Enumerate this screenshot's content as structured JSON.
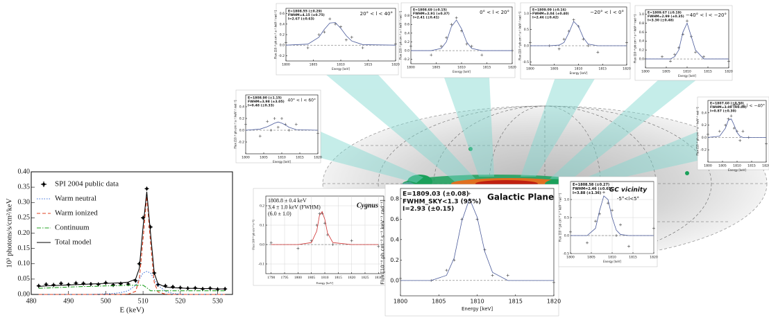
{
  "chart_data": [
    {
      "type": "line",
      "xlabel": "E (keV)",
      "ylabel": "10³ photons/s/cm²/keV",
      "x": [
        482,
        484,
        486,
        488,
        490,
        492,
        494,
        496,
        498,
        500,
        502,
        504,
        506,
        508,
        509,
        510,
        511,
        512,
        513,
        514,
        516,
        518,
        520,
        522,
        524,
        526,
        528,
        530,
        532
      ],
      "xlim": [
        480,
        534
      ],
      "xticks": [
        480,
        490,
        500,
        510,
        520,
        530
      ],
      "ylim": [
        0,
        0.4
      ],
      "yticks": [
        {
          "value": 0,
          "label": "0.00"
        },
        {
          "value": 0.05,
          "label": "0.05"
        },
        {
          "value": 0.1,
          "label": "0.10"
        },
        {
          "value": 0.15,
          "label": "0.15"
        },
        {
          "value": 0.2,
          "label": "0.20"
        },
        {
          "value": 0.25,
          "label": "0.25"
        },
        {
          "value": 0.3,
          "label": "0.30"
        },
        {
          "value": 0.35,
          "label": "0.35"
        },
        {
          "value": 0.4,
          "label": "0.40"
        }
      ],
      "legend": "upper left",
      "series": [
        {
          "name": "SPI 2004 public data",
          "color": "#000000",
          "style": "points",
          "values": [
            0.028,
            0.033,
            0.031,
            0.036,
            0.032,
            0.037,
            0.036,
            0.034,
            0.033,
            0.038,
            0.031,
            0.035,
            0.034,
            0.045,
            0.1,
            0.25,
            0.345,
            0.22,
            0.07,
            0.032,
            0.028,
            0.025,
            0.022,
            0.02,
            0.021,
            0.018,
            0.02,
            0.017,
            0.018
          ]
        },
        {
          "name": "Warm neutral",
          "color": "#3a6fd8",
          "style": "dotted",
          "values": [
            0,
            0,
            0,
            0,
            0,
            0,
            0,
            0,
            0.001,
            0.002,
            0.003,
            0.006,
            0.012,
            0.03,
            0.05,
            0.07,
            0.075,
            0.07,
            0.05,
            0.03,
            0.01,
            0.003,
            0.001,
            0,
            0,
            0,
            0,
            0,
            0
          ]
        },
        {
          "name": "Warm ionized",
          "color": "#e04020",
          "style": "dashed",
          "values": [
            0,
            0,
            0,
            0,
            0,
            0,
            0,
            0,
            0,
            0,
            0,
            0,
            0.001,
            0.01,
            0.05,
            0.18,
            0.32,
            0.17,
            0.04,
            0.008,
            0.001,
            0,
            0,
            0,
            0,
            0,
            0,
            0,
            0
          ]
        },
        {
          "name": "Continuum",
          "color": "#20a020",
          "style": "dashdot",
          "values": [
            0.02,
            0.021,
            0.022,
            0.023,
            0.024,
            0.025,
            0.026,
            0.026,
            0.027,
            0.028,
            0.028,
            0.029,
            0.03,
            0.03,
            0.03,
            0.03,
            0.022,
            0.012,
            0.012,
            0.012,
            0.012,
            0.012,
            0.012,
            0.012,
            0.012,
            0.012,
            0.012,
            0.012,
            0.012
          ]
        },
        {
          "name": "Total model",
          "color": "#000000",
          "style": "solid",
          "values": [
            0.026,
            0.028,
            0.029,
            0.03,
            0.031,
            0.032,
            0.033,
            0.034,
            0.035,
            0.036,
            0.037,
            0.038,
            0.04,
            0.05,
            0.085,
            0.22,
            0.335,
            0.2,
            0.07,
            0.035,
            0.024,
            0.022,
            0.021,
            0.02,
            0.02,
            0.019,
            0.019,
            0.018,
            0.018
          ]
        }
      ]
    },
    {
      "type": "line",
      "title": "20° < l < 40°",
      "annotations": [
        "E=1808.55 (±0.29)",
        "FWHM=4.15 (±0.75)",
        "I=2.67 (±0.63)"
      ],
      "xlabel": "Energy [keV]",
      "ylabel": "Flux [10⁻⁴ ph cm⁻² s⁻¹ keV⁻¹ rad⁻¹]",
      "x": [
        1800,
        1804,
        1806,
        1807,
        1808,
        1809,
        1810,
        1811,
        1812,
        1814,
        1820
      ],
      "xlim": [
        1800,
        1820
      ],
      "xticks": [
        1800,
        1805,
        1810,
        1815,
        1820
      ],
      "ylim": [
        -0.3,
        0.7
      ],
      "yticks": [
        -0.2,
        {
          "value": 0,
          "label": "0.0"
        },
        0.2,
        0.4,
        0.6
      ],
      "hline": 0,
      "series": [
        {
          "color": "#444444",
          "style": "points",
          "values": [
            0.05,
            -0.05,
            0.2,
            0.25,
            0.5,
            0.4,
            0.35,
            0.1,
            0.15,
            -0.05,
            0.02
          ]
        },
        {
          "color": "#4a5a9a",
          "style": "solid",
          "values": [
            0,
            0.02,
            0.15,
            0.3,
            0.42,
            0.43,
            0.32,
            0.18,
            0.08,
            0.01,
            0
          ]
        }
      ]
    },
    {
      "type": "line",
      "title": "0° < l < 20°",
      "annotations": [
        "E=1808.69 (±0.15)",
        "FWHM=2.91 (±0.37)",
        "I=2.41 (±0.41)"
      ],
      "xlabel": "Energy [keV]",
      "ylabel": "Flux [10⁻⁴ ph cm⁻² s⁻¹ keV⁻¹ rad⁻¹]",
      "x": [
        1800,
        1804,
        1806,
        1807,
        1808,
        1809,
        1810,
        1811,
        1812,
        1814,
        1820
      ],
      "xlim": [
        1800,
        1820
      ],
      "xticks": [
        1800,
        1805,
        1810,
        1815,
        1820
      ],
      "ylim": [
        -0.3,
        1.0
      ],
      "yticks": [
        -0.2,
        {
          "value": 0,
          "label": "0.0"
        },
        0.2,
        0.4,
        0.6,
        0.8
      ],
      "hline": 0,
      "series": [
        {
          "color": "#444444",
          "style": "points",
          "values": [
            0.1,
            -0.1,
            0.1,
            0.3,
            0.6,
            0.75,
            0.45,
            0.15,
            0.1,
            -0.1,
            0.0
          ]
        },
        {
          "color": "#4a5a9a",
          "style": "solid",
          "values": [
            0,
            0,
            0.05,
            0.2,
            0.55,
            0.7,
            0.5,
            0.2,
            0.05,
            0,
            0
          ]
        }
      ]
    },
    {
      "type": "line",
      "title": "−20° < l < 0°",
      "annotations": [
        "E=1809.09 (±0.16)",
        "FWHM=3.04 (±0.40)",
        "I=2.46 (±0.42)"
      ],
      "xlabel": "Energy [keV]",
      "ylabel": "Flux [10⁻⁴ ph cm⁻² s⁻¹ keV⁻¹ rad⁻¹]",
      "x": [
        1800,
        1804,
        1806,
        1807,
        1808,
        1809,
        1810,
        1811,
        1812,
        1814,
        1820
      ],
      "xlim": [
        1800,
        1820
      ],
      "xticks": [
        1800,
        1805,
        1810,
        1815,
        1820
      ],
      "ylim": [
        -0.6,
        1.2
      ],
      "yticks": [
        -0.5,
        {
          "value": 0,
          "label": "0.0"
        },
        0.5,
        {
          "value": 1,
          "label": "1.0"
        }
      ],
      "hline": 0,
      "series": [
        {
          "color": "#444444",
          "style": "points",
          "values": [
            0.1,
            0.0,
            -0.1,
            0.2,
            0.45,
            0.8,
            0.6,
            0.2,
            0.0,
            -0.2,
            0.1
          ]
        },
        {
          "color": "#4a5a9a",
          "style": "solid",
          "values": [
            0,
            0,
            0.02,
            0.1,
            0.4,
            0.75,
            0.6,
            0.25,
            0.05,
            0,
            0
          ]
        }
      ]
    },
    {
      "type": "line",
      "title": "−40° < l < −20°",
      "annotations": [
        "E=1809.67 (±0.19)",
        "FWHM=2.99 (±0.35)",
        "I=3.30 (±0.48)"
      ],
      "xlabel": "Energy [keV]",
      "ylabel": "Flux [10⁻⁴ ph cm⁻² s⁻¹ keV⁻¹ rad⁻¹]",
      "x": [
        1800,
        1804,
        1806,
        1807,
        1808,
        1809,
        1810,
        1811,
        1812,
        1814,
        1820
      ],
      "xlim": [
        1800,
        1820
      ],
      "xticks": [
        1800,
        1805,
        1810,
        1815,
        1820
      ],
      "ylim": [
        -0.2,
        1.1
      ],
      "yticks": [
        {
          "value": 0,
          "label": "0.0"
        },
        0.2,
        0.4,
        0.6,
        0.8,
        {
          "value": 1,
          "label": "1.0"
        }
      ],
      "hline": 0,
      "series": [
        {
          "color": "#444444",
          "style": "points",
          "values": [
            0.0,
            0.05,
            -0.05,
            0.1,
            0.25,
            0.55,
            0.85,
            0.5,
            0.15,
            0.05,
            -0.05
          ]
        },
        {
          "color": "#4a5a9a",
          "style": "solid",
          "values": [
            0,
            0,
            0,
            0.05,
            0.2,
            0.6,
            0.8,
            0.5,
            0.2,
            0,
            0
          ]
        }
      ]
    },
    {
      "type": "line",
      "title": "40° < l < 60°",
      "annotations": [
        "E=1808.90 (±1.15)",
        "FWHM=3.98 (±3.05)",
        "I=0.48 (±0.33)"
      ],
      "xlabel": "Energy [keV]",
      "ylabel": "Flux [10⁻⁴ ph cm⁻² s⁻¹ keV⁻¹ rad⁻¹]",
      "x": [
        1800,
        1804,
        1806,
        1807,
        1808,
        1809,
        1810,
        1811,
        1812,
        1814,
        1820
      ],
      "xlim": [
        1800,
        1820
      ],
      "xticks": [
        1800,
        1805,
        1810,
        1815,
        1820
      ],
      "ylim": [
        -0.4,
        0.6
      ],
      "yticks": [
        -0.2,
        {
          "value": 0,
          "label": "0.0"
        },
        0.2,
        0.4
      ],
      "hline": 0,
      "series": [
        {
          "color": "#444444",
          "style": "points",
          "values": [
            0.1,
            -0.1,
            0.15,
            0,
            0.2,
            0.05,
            0.2,
            0.1,
            0,
            0.1,
            -0.05
          ]
        },
        {
          "color": "#4a5a9a",
          "style": "solid",
          "values": [
            0,
            0.02,
            0.06,
            0.09,
            0.12,
            0.14,
            0.12,
            0.09,
            0.05,
            0.01,
            0
          ]
        }
      ]
    },
    {
      "type": "line",
      "title": "−60° < l < −40°",
      "annotations": [
        "E=1807.60 (±0.50)",
        "FWHM=3.00 (±0.00)",
        "I=0.87 (±0.30)"
      ],
      "xlabel": "Energy [keV]",
      "ylabel": "Flux [10⁻⁴ ph cm⁻² s⁻¹ keV⁻¹ rad⁻¹]",
      "x": [
        1800,
        1804,
        1806,
        1807,
        1808,
        1809,
        1810,
        1811,
        1812,
        1814,
        1820
      ],
      "xlim": [
        1800,
        1820
      ],
      "xticks": [
        1800,
        1805,
        1810,
        1815,
        1820
      ],
      "ylim": [
        -0.4,
        0.6
      ],
      "yticks": [
        -0.2,
        {
          "value": 0,
          "label": "0.0"
        },
        0.2,
        0.4
      ],
      "hline": 0,
      "series": [
        {
          "color": "#444444",
          "style": "points",
          "values": [
            0.05,
            0.1,
            0.2,
            0.3,
            0.35,
            0.15,
            0.1,
            -0.05,
            0.1,
            0,
            -0.1
          ]
        },
        {
          "color": "#4a5a9a",
          "style": "solid",
          "values": [
            0,
            0.02,
            0.15,
            0.28,
            0.3,
            0.2,
            0.08,
            0.02,
            0,
            0,
            0
          ]
        }
      ]
    },
    {
      "type": "line",
      "title": "Cygnus",
      "annotations": [
        "1808.8 ± 0.4 keV",
        "3.4 ± 1.0 keV (FWHM)",
        "(6.0 ± 1.0)"
      ],
      "xlabel": "Energy [keV]",
      "ylabel": "Flux [10⁻³ ph cm⁻² s⁻¹]",
      "x": [
        1790,
        1800,
        1805,
        1807,
        1808,
        1809,
        1810,
        1811,
        1813,
        1820,
        1830
      ],
      "xlim": [
        1788,
        1832
      ],
      "xticks": [
        1790,
        1795,
        1800,
        1805,
        1810,
        1815,
        1820,
        1825,
        1830
      ],
      "ylim": [
        -0.15,
        0.25
      ],
      "yticks": [
        -0.1,
        {
          "value": 0,
          "label": "0.0"
        },
        0.1,
        0.2
      ],
      "grid": true,
      "hline": 0,
      "series": [
        {
          "color": "#444444",
          "style": "points",
          "values": [
            0.01,
            -0.02,
            0.02,
            0.1,
            0.16,
            0.16,
            0.11,
            0.05,
            0.0,
            0.02,
            -0.01
          ]
        },
        {
          "color": "#d03030",
          "style": "solid",
          "values": [
            0,
            0,
            0.01,
            0.07,
            0.15,
            0.17,
            0.13,
            0.06,
            0.01,
            0,
            0
          ]
        }
      ]
    },
    {
      "type": "line",
      "title": "Galactic Plane",
      "annotations": [
        "E=1809.03 (±0.08)",
        "FWHM_SKY<1.3 (95%)",
        "I=2.93 (±0.15)"
      ],
      "xlabel": "Energy [keV]",
      "ylabel": "Flux [10⁻⁴ ph cm⁻² s⁻¹ keV⁻¹ rad⁻¹]",
      "x": [
        1800,
        1804,
        1806,
        1807,
        1808,
        1809,
        1810,
        1811,
        1812,
        1814,
        1820
      ],
      "xlim": [
        1800,
        1820
      ],
      "xticks": [
        1800,
        1805,
        1810,
        1815,
        1820
      ],
      "ylim": [
        -0.15,
        0.9
      ],
      "yticks": [
        {
          "value": 0,
          "label": "0.0"
        },
        0.2,
        0.4,
        0.6,
        0.8
      ],
      "hline": 0,
      "series": [
        {
          "color": "#444444",
          "style": "points",
          "values": [
            0.02,
            0.0,
            0.1,
            0.2,
            0.6,
            0.85,
            0.6,
            0.3,
            0.05,
            0.05,
            -0.02
          ]
        },
        {
          "color": "#4a5a9a",
          "style": "solid",
          "values": [
            0,
            0,
            0.05,
            0.22,
            0.58,
            0.8,
            0.62,
            0.28,
            0.08,
            0,
            0
          ]
        }
      ]
    },
    {
      "type": "line",
      "title": "GC vicinity",
      "subtitle": "-5°<l<5°",
      "annotations": [
        "E=1808.58 (±0.27)",
        "FWHM=2.46 (±0.65)",
        "I=3.88 (±1.36)"
      ],
      "xlabel": "Energy [keV]",
      "ylabel": "Flux [10⁻⁴ ph cm⁻² s⁻¹ keV⁻¹ rad⁻¹]",
      "x": [
        1800,
        1804,
        1806,
        1807,
        1808,
        1809,
        1810,
        1811,
        1812,
        1814,
        1820
      ],
      "xlim": [
        1800,
        1820
      ],
      "xticks": [
        1800,
        1805,
        1810,
        1815,
        1820
      ],
      "ylim": [
        -0.5,
        1.5
      ],
      "yticks": [
        -0.5,
        {
          "value": 0,
          "label": "0.0"
        },
        0.5,
        {
          "value": 1,
          "label": "1.0"
        }
      ],
      "grid": true,
      "hline": 0,
      "series": [
        {
          "color": "#444444",
          "style": "points",
          "values": [
            0.1,
            -0.2,
            0.4,
            0.6,
            1.2,
            0.9,
            0.7,
            0.0,
            0.3,
            -0.3,
            0.2
          ]
        },
        {
          "color": "#4a5a9a",
          "style": "solid",
          "values": [
            0,
            0,
            0.2,
            0.7,
            1.1,
            1.0,
            0.5,
            0.15,
            0.03,
            0,
            0
          ]
        }
      ]
    }
  ]
}
